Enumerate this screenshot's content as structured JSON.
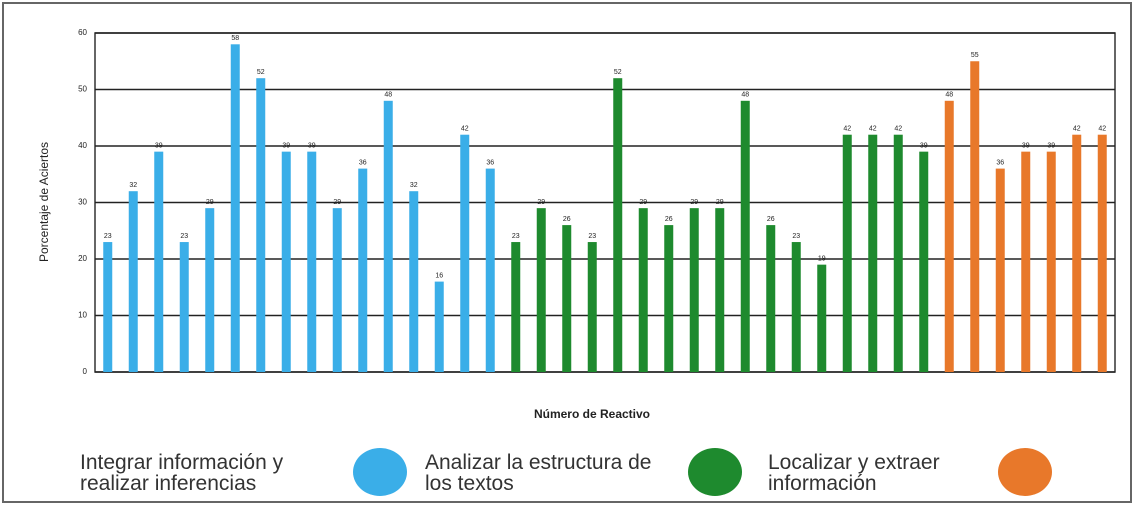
{
  "chart_data": {
    "type": "bar",
    "y_label": "Porcentaje de Aciertos",
    "x_label": "Número de Reactivo",
    "categories": [
      null,
      null,
      null,
      null,
      null,
      null,
      null,
      null,
      null,
      null,
      null,
      null,
      null,
      null,
      null,
      null,
      null,
      null,
      null,
      null,
      null,
      null,
      null,
      null,
      null,
      null,
      null,
      null,
      null,
      null,
      null,
      null,
      null,
      null,
      null,
      null,
      null,
      null,
      null,
      null
    ],
    "series": [
      {
        "name": "Integrar información y realizar inferencias",
        "color": "#3aaee8",
        "values": [
          23,
          32,
          39,
          23,
          29,
          58,
          52,
          39,
          39,
          29,
          36,
          48,
          32,
          16,
          42,
          36,
          null,
          null,
          null,
          null,
          null,
          null,
          null,
          null,
          null,
          null,
          null,
          null,
          null,
          null,
          null,
          null,
          null,
          null,
          null,
          null,
          null,
          null,
          null,
          null
        ]
      },
      {
        "name": "Analizar la estructura de los textos",
        "color": "#1e8a2e",
        "values": [
          null,
          null,
          null,
          null,
          null,
          null,
          null,
          null,
          null,
          null,
          null,
          null,
          null,
          null,
          null,
          null,
          23,
          29,
          26,
          23,
          52,
          29,
          26,
          29,
          29,
          48,
          26,
          23,
          19,
          42,
          42,
          42,
          39,
          null,
          null,
          null,
          null,
          null,
          null,
          null
        ]
      },
      {
        "name": "Localizar y extraer información",
        "color": "#e8782a",
        "values": [
          null,
          null,
          null,
          null,
          null,
          null,
          null,
          null,
          null,
          null,
          null,
          null,
          null,
          null,
          null,
          null,
          null,
          null,
          null,
          null,
          null,
          null,
          null,
          null,
          null,
          null,
          null,
          null,
          null,
          null,
          null,
          null,
          null,
          48,
          55,
          36,
          39,
          39,
          42,
          42
        ]
      }
    ],
    "ylim": [
      0,
      60
    ],
    "yticks": [
      0,
      10,
      20,
      30,
      40,
      50,
      60
    ],
    "grid": true
  }
}
